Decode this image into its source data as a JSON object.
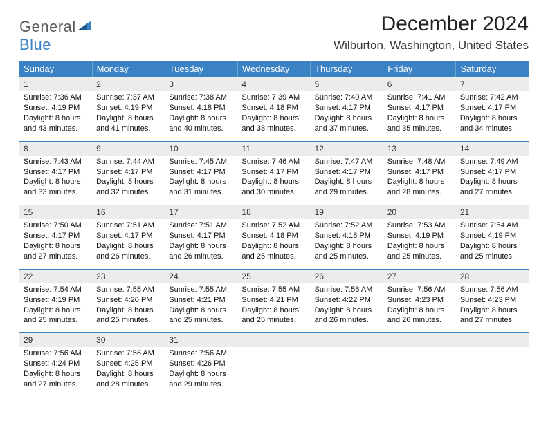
{
  "logo": {
    "word1": "General",
    "word2": "Blue",
    "text_color": "#5a5a5a",
    "accent_color": "#3b82c4"
  },
  "header": {
    "title": "December 2024",
    "location": "Wilburton, Washington, United States"
  },
  "colors": {
    "header_bg": "#3b82c4",
    "header_text": "#ffffff",
    "daynum_bg": "#ececec",
    "rule": "#3b82c4"
  },
  "calendar": {
    "type": "table",
    "columns": [
      "Sunday",
      "Monday",
      "Tuesday",
      "Wednesday",
      "Thursday",
      "Friday",
      "Saturday"
    ],
    "rows": [
      [
        {
          "n": "1",
          "sr": "Sunrise: 7:36 AM",
          "ss": "Sunset: 4:19 PM",
          "dl": "Daylight: 8 hours and 43 minutes."
        },
        {
          "n": "2",
          "sr": "Sunrise: 7:37 AM",
          "ss": "Sunset: 4:19 PM",
          "dl": "Daylight: 8 hours and 41 minutes."
        },
        {
          "n": "3",
          "sr": "Sunrise: 7:38 AM",
          "ss": "Sunset: 4:18 PM",
          "dl": "Daylight: 8 hours and 40 minutes."
        },
        {
          "n": "4",
          "sr": "Sunrise: 7:39 AM",
          "ss": "Sunset: 4:18 PM",
          "dl": "Daylight: 8 hours and 38 minutes."
        },
        {
          "n": "5",
          "sr": "Sunrise: 7:40 AM",
          "ss": "Sunset: 4:17 PM",
          "dl": "Daylight: 8 hours and 37 minutes."
        },
        {
          "n": "6",
          "sr": "Sunrise: 7:41 AM",
          "ss": "Sunset: 4:17 PM",
          "dl": "Daylight: 8 hours and 35 minutes."
        },
        {
          "n": "7",
          "sr": "Sunrise: 7:42 AM",
          "ss": "Sunset: 4:17 PM",
          "dl": "Daylight: 8 hours and 34 minutes."
        }
      ],
      [
        {
          "n": "8",
          "sr": "Sunrise: 7:43 AM",
          "ss": "Sunset: 4:17 PM",
          "dl": "Daylight: 8 hours and 33 minutes."
        },
        {
          "n": "9",
          "sr": "Sunrise: 7:44 AM",
          "ss": "Sunset: 4:17 PM",
          "dl": "Daylight: 8 hours and 32 minutes."
        },
        {
          "n": "10",
          "sr": "Sunrise: 7:45 AM",
          "ss": "Sunset: 4:17 PM",
          "dl": "Daylight: 8 hours and 31 minutes."
        },
        {
          "n": "11",
          "sr": "Sunrise: 7:46 AM",
          "ss": "Sunset: 4:17 PM",
          "dl": "Daylight: 8 hours and 30 minutes."
        },
        {
          "n": "12",
          "sr": "Sunrise: 7:47 AM",
          "ss": "Sunset: 4:17 PM",
          "dl": "Daylight: 8 hours and 29 minutes."
        },
        {
          "n": "13",
          "sr": "Sunrise: 7:48 AM",
          "ss": "Sunset: 4:17 PM",
          "dl": "Daylight: 8 hours and 28 minutes."
        },
        {
          "n": "14",
          "sr": "Sunrise: 7:49 AM",
          "ss": "Sunset: 4:17 PM",
          "dl": "Daylight: 8 hours and 27 minutes."
        }
      ],
      [
        {
          "n": "15",
          "sr": "Sunrise: 7:50 AM",
          "ss": "Sunset: 4:17 PM",
          "dl": "Daylight: 8 hours and 27 minutes."
        },
        {
          "n": "16",
          "sr": "Sunrise: 7:51 AM",
          "ss": "Sunset: 4:17 PM",
          "dl": "Daylight: 8 hours and 26 minutes."
        },
        {
          "n": "17",
          "sr": "Sunrise: 7:51 AM",
          "ss": "Sunset: 4:17 PM",
          "dl": "Daylight: 8 hours and 26 minutes."
        },
        {
          "n": "18",
          "sr": "Sunrise: 7:52 AM",
          "ss": "Sunset: 4:18 PM",
          "dl": "Daylight: 8 hours and 25 minutes."
        },
        {
          "n": "19",
          "sr": "Sunrise: 7:52 AM",
          "ss": "Sunset: 4:18 PM",
          "dl": "Daylight: 8 hours and 25 minutes."
        },
        {
          "n": "20",
          "sr": "Sunrise: 7:53 AM",
          "ss": "Sunset: 4:19 PM",
          "dl": "Daylight: 8 hours and 25 minutes."
        },
        {
          "n": "21",
          "sr": "Sunrise: 7:54 AM",
          "ss": "Sunset: 4:19 PM",
          "dl": "Daylight: 8 hours and 25 minutes."
        }
      ],
      [
        {
          "n": "22",
          "sr": "Sunrise: 7:54 AM",
          "ss": "Sunset: 4:19 PM",
          "dl": "Daylight: 8 hours and 25 minutes."
        },
        {
          "n": "23",
          "sr": "Sunrise: 7:55 AM",
          "ss": "Sunset: 4:20 PM",
          "dl": "Daylight: 8 hours and 25 minutes."
        },
        {
          "n": "24",
          "sr": "Sunrise: 7:55 AM",
          "ss": "Sunset: 4:21 PM",
          "dl": "Daylight: 8 hours and 25 minutes."
        },
        {
          "n": "25",
          "sr": "Sunrise: 7:55 AM",
          "ss": "Sunset: 4:21 PM",
          "dl": "Daylight: 8 hours and 25 minutes."
        },
        {
          "n": "26",
          "sr": "Sunrise: 7:56 AM",
          "ss": "Sunset: 4:22 PM",
          "dl": "Daylight: 8 hours and 26 minutes."
        },
        {
          "n": "27",
          "sr": "Sunrise: 7:56 AM",
          "ss": "Sunset: 4:23 PM",
          "dl": "Daylight: 8 hours and 26 minutes."
        },
        {
          "n": "28",
          "sr": "Sunrise: 7:56 AM",
          "ss": "Sunset: 4:23 PM",
          "dl": "Daylight: 8 hours and 27 minutes."
        }
      ],
      [
        {
          "n": "29",
          "sr": "Sunrise: 7:56 AM",
          "ss": "Sunset: 4:24 PM",
          "dl": "Daylight: 8 hours and 27 minutes."
        },
        {
          "n": "30",
          "sr": "Sunrise: 7:56 AM",
          "ss": "Sunset: 4:25 PM",
          "dl": "Daylight: 8 hours and 28 minutes."
        },
        {
          "n": "31",
          "sr": "Sunrise: 7:56 AM",
          "ss": "Sunset: 4:26 PM",
          "dl": "Daylight: 8 hours and 29 minutes."
        },
        null,
        null,
        null,
        null
      ]
    ]
  }
}
